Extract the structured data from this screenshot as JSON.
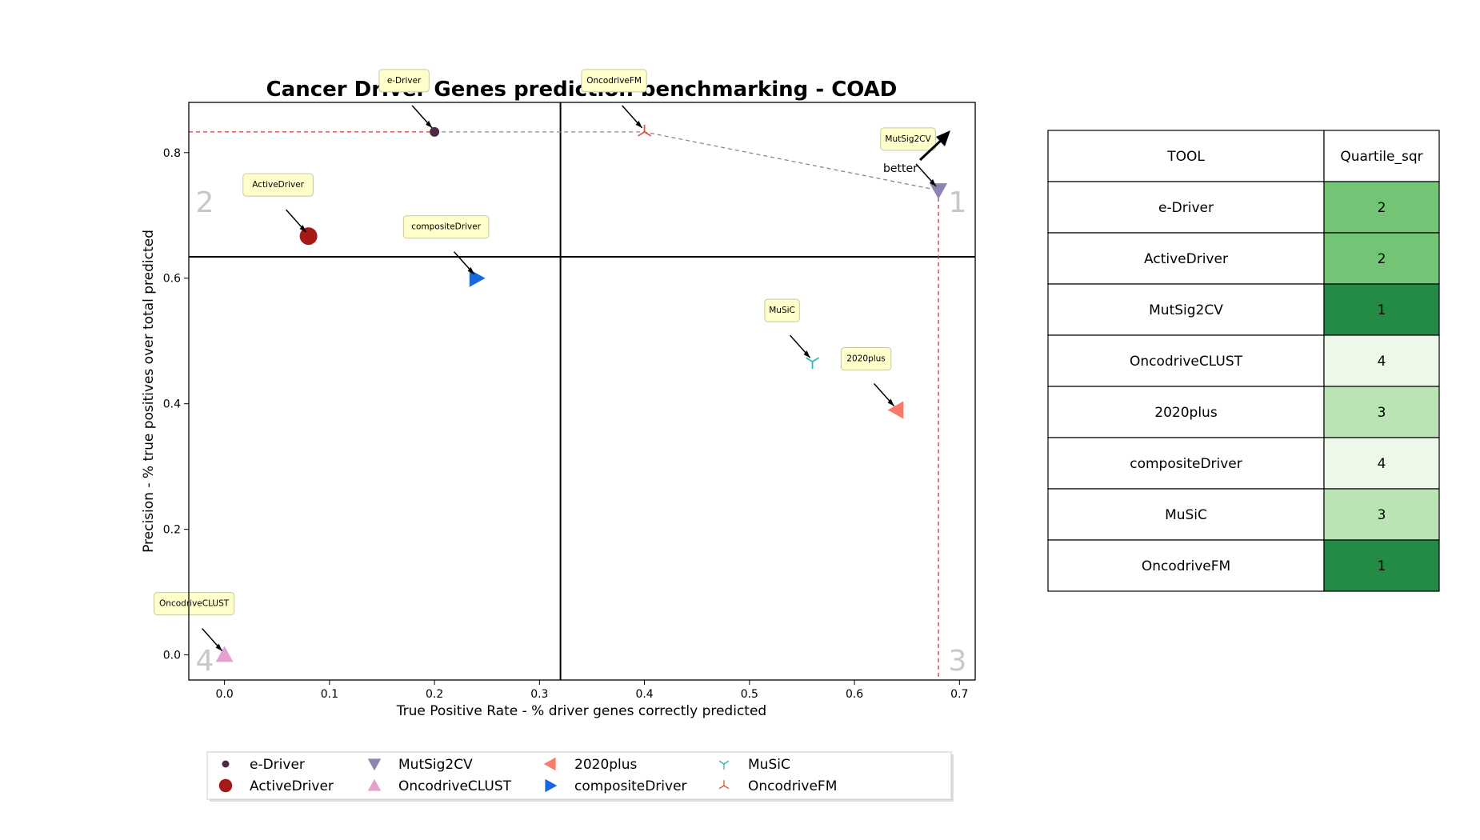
{
  "chart_data": {
    "type": "scatter",
    "title": "Cancer Driver Genes prediction benchmarking - COAD",
    "xlabel": "True Positive Rate - % driver genes correctly predicted",
    "ylabel": "Precision - % true positives over total predicted",
    "xlim": [
      -0.034,
      0.715
    ],
    "ylim": [
      -0.04,
      0.88
    ],
    "xticks": [
      "0.0",
      "0.1",
      "0.2",
      "0.3",
      "0.4",
      "0.5",
      "0.6",
      "0.7"
    ],
    "xtick_values": [
      0.0,
      0.1,
      0.2,
      0.3,
      0.4,
      0.5,
      0.6,
      0.7
    ],
    "yticks": [
      "0.0",
      "0.2",
      "0.4",
      "0.6",
      "0.8"
    ],
    "ytick_values": [
      0.0,
      0.2,
      0.4,
      0.6,
      0.8
    ],
    "grid": false,
    "quartile_lines": {
      "x": 0.32,
      "y": 0.634
    },
    "quadrant_labels": [
      "1",
      "2",
      "3",
      "4"
    ],
    "better_label": "better",
    "pareto_front": [
      [
        0.2,
        0.833
      ],
      [
        0.4,
        0.833
      ],
      [
        0.68,
        0.74
      ]
    ],
    "series": [
      {
        "name": "e-Driver",
        "x": 0.2,
        "y": 0.833,
        "marker": "dot",
        "color": "#4a2a45",
        "label": "e-Driver"
      },
      {
        "name": "ActiveDriver",
        "x": 0.08,
        "y": 0.667,
        "marker": "circle",
        "color": "#a51a17",
        "label": "ActiveDriver"
      },
      {
        "name": "MutSig2CV",
        "x": 0.68,
        "y": 0.74,
        "marker": "triangle-down",
        "color": "#8b86b0",
        "label": "MutSig2CV"
      },
      {
        "name": "OncodriveCLUST",
        "x": 0.0,
        "y": 0.0,
        "marker": "triangle-up",
        "color": "#e3a1cf",
        "label": "OncodriveCLUST"
      },
      {
        "name": "2020plus",
        "x": 0.64,
        "y": 0.39,
        "marker": "triangle-left",
        "color": "#f87b6a",
        "label": "2020plus"
      },
      {
        "name": "compositeDriver",
        "x": 0.24,
        "y": 0.6,
        "marker": "triangle-right",
        "color": "#1668e0",
        "label": "compositeDriver"
      },
      {
        "name": "MuSiC",
        "x": 0.56,
        "y": 0.467,
        "marker": "tri-down",
        "color": "#27bdb7",
        "label": "MuSiC"
      },
      {
        "name": "OncodriveFM",
        "x": 0.4,
        "y": 0.833,
        "marker": "tri-up",
        "color": "#d8573a",
        "label": "OncodriveFM"
      }
    ],
    "legend": {
      "placement": "below",
      "entries": [
        "e-Driver",
        "ActiveDriver",
        "MutSig2CV",
        "OncodriveCLUST",
        "2020plus",
        "compositeDriver",
        "MuSiC",
        "OncodriveFM"
      ]
    },
    "table": {
      "headers": [
        "TOOL",
        "Quartile_sqr"
      ],
      "rows": [
        [
          "e-Driver",
          "2"
        ],
        [
          "ActiveDriver",
          "2"
        ],
        [
          "MutSig2CV",
          "1"
        ],
        [
          "OncodriveCLUST",
          "4"
        ],
        [
          "2020plus",
          "3"
        ],
        [
          "compositeDriver",
          "4"
        ],
        [
          "MuSiC",
          "3"
        ],
        [
          "OncodriveFM",
          "1"
        ]
      ],
      "quartile_colors": {
        "1": "#238b45",
        "2": "#74c476",
        "3": "#bae4b3",
        "4": "#edf8e9"
      }
    }
  }
}
